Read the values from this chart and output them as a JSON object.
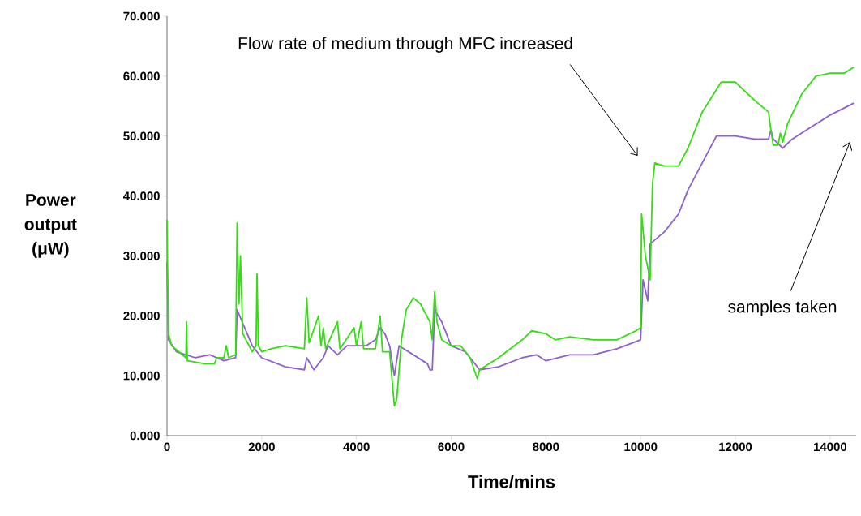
{
  "chart_data": {
    "type": "line",
    "xlabel": "Time/mins",
    "ylabel": "Power output (μW)",
    "xlim": [
      0,
      14550
    ],
    "ylim": [
      0,
      70
    ],
    "xticks": [
      0,
      2000,
      4000,
      6000,
      8000,
      10000,
      12000,
      14000
    ],
    "yticks": [
      {
        "value": 0,
        "label": "0.000"
      },
      {
        "value": 10,
        "label": "10.000"
      },
      {
        "value": 20,
        "label": "20.000"
      },
      {
        "value": 30,
        "label": "30.000"
      },
      {
        "value": 40,
        "label": "40.000"
      },
      {
        "value": 50,
        "label": "50.000"
      },
      {
        "value": 60,
        "label": "60.000"
      },
      {
        "value": 70,
        "label": "70.000"
      }
    ],
    "grid": false,
    "marker": "none",
    "line_style": "solid",
    "series": [
      {
        "color": "#8e5fd0",
        "x": [
          0,
          30,
          200,
          600,
          900,
          1200,
          1450,
          1480,
          1800,
          2000,
          2500,
          2900,
          2950,
          3100,
          3300,
          3400,
          3600,
          3800,
          4200,
          4400,
          4500,
          4600,
          4700,
          4800,
          4900,
          5000,
          5500,
          5550,
          5600,
          5650,
          5800,
          6000,
          6300,
          6600,
          7000,
          7500,
          7800,
          8000,
          8500,
          9000,
          9500,
          10000,
          10050,
          10150,
          10200,
          10500,
          10800,
          11000,
          11300,
          11600,
          12000,
          12400,
          12700,
          12750,
          12800,
          13000,
          13200,
          13500,
          14000,
          14500
        ],
        "values": [
          29,
          16,
          14,
          13,
          13.5,
          12.5,
          13,
          21,
          15,
          13,
          11.5,
          11,
          13,
          11,
          13,
          15,
          13.5,
          15,
          15,
          16,
          18,
          17,
          15,
          10,
          15,
          14.5,
          12,
          11,
          11,
          21,
          19,
          15,
          14,
          11,
          11.5,
          13,
          13.5,
          12.5,
          13.5,
          13.5,
          14.5,
          16,
          26,
          22.5,
          32,
          34,
          37,
          41,
          45.5,
          50,
          50,
          49.5,
          49.5,
          51,
          49.5,
          48,
          49.5,
          51,
          53.5,
          55.5
        ]
      },
      {
        "color": "#33dd11",
        "x": [
          0,
          30,
          100,
          400,
          410,
          430,
          800,
          1000,
          1050,
          1200,
          1250,
          1300,
          1450,
          1480,
          1520,
          1550,
          1600,
          1800,
          1880,
          1900,
          1930,
          2000,
          2200,
          2500,
          2900,
          2950,
          3000,
          3200,
          3250,
          3300,
          3350,
          3600,
          3650,
          3950,
          4000,
          4100,
          4150,
          4400,
          4500,
          4550,
          4700,
          4800,
          4850,
          4950,
          5050,
          5200,
          5350,
          5550,
          5600,
          5650,
          5700,
          5800,
          6000,
          6200,
          6400,
          6550,
          6600,
          7000,
          7500,
          7700,
          8000,
          8200,
          8500,
          9000,
          9500,
          9900,
          10000,
          10020,
          10100,
          10200,
          10250,
          10300,
          10500,
          10800,
          11000,
          11300,
          11700,
          12000,
          12400,
          12700,
          12750,
          12800,
          12900,
          12950,
          13000,
          13100,
          13400,
          13700,
          14000,
          14300,
          14500
        ],
        "values": [
          36,
          17,
          15,
          13,
          19,
          12.5,
          12,
          12,
          13,
          13,
          15,
          13,
          13.5,
          35.5,
          22,
          30,
          17,
          14,
          15,
          27,
          15,
          14,
          14.5,
          15,
          14.5,
          23,
          15.5,
          20,
          15,
          18,
          14.5,
          19,
          14.5,
          18,
          15,
          19,
          14.5,
          14.5,
          20,
          14,
          14,
          5,
          6,
          16,
          21,
          23,
          22,
          19,
          16,
          24,
          19,
          16,
          15,
          15,
          13,
          9.5,
          11,
          13,
          16,
          17.5,
          17,
          16,
          16.5,
          16,
          16,
          17.5,
          18,
          37,
          30,
          26,
          42,
          45.5,
          45,
          45,
          48,
          54,
          59,
          59,
          56,
          54,
          51,
          48.5,
          48.5,
          50.5,
          49,
          52,
          57,
          60,
          60.5,
          60.5,
          61.5
        ]
      }
    ],
    "annotations": [
      "Flow rate of medium through MFC increased",
      "samples taken"
    ]
  }
}
